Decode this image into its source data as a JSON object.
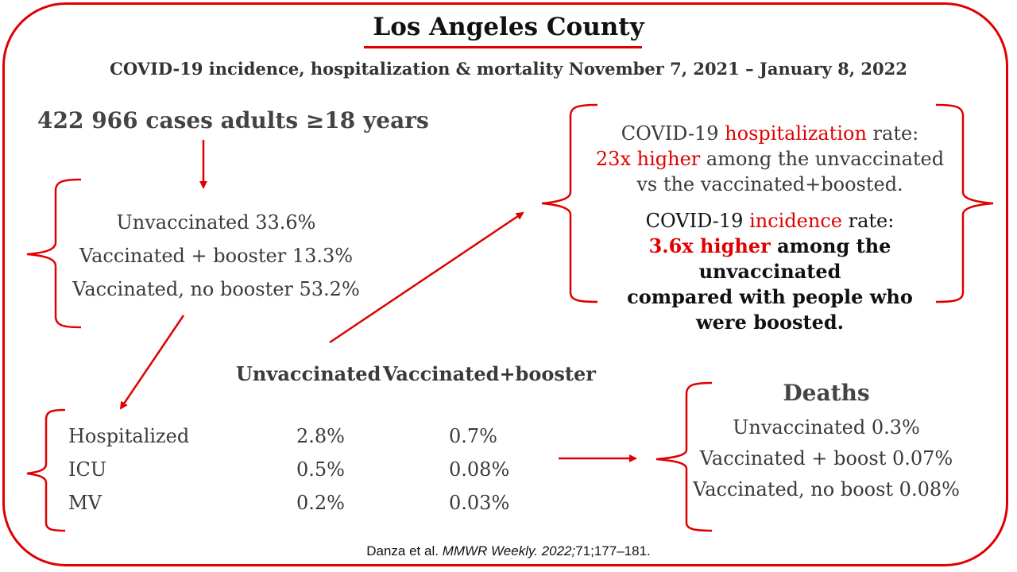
{
  "header": {
    "title": "Los Angeles County",
    "subtitle": "COVID-19 incidence, hospitalization & mortality November 7, 2021 – January 8, 2022"
  },
  "cases": {
    "text": "422 966 cases adults ≥18 years"
  },
  "vaccination_status": [
    "Unvaccinated 33.6%",
    "Vaccinated + booster 13.3%",
    "Vaccinated, no booster 53.2%"
  ],
  "table": {
    "headers": [
      "Unvaccinated",
      "Vaccinated+booster"
    ],
    "rows": [
      {
        "label": "Hospitalized",
        "unvaccinated": "2.8%",
        "boosted": "0.7%"
      },
      {
        "label": "ICU",
        "unvaccinated": "0.5%",
        "boosted": "0.08%"
      },
      {
        "label": "MV",
        "unvaccinated": "0.2%",
        "boosted": "0.03%"
      }
    ]
  },
  "rates": {
    "hosp_prefix": "COVID-19 ",
    "hosp_keyword": "hospitalization",
    "hosp_suffix": " rate:",
    "hosp_highlight": "23x higher",
    "hosp_line2": " among the unvaccinated",
    "hosp_line3": "vs the vaccinated+boosted.",
    "inc_prefix": "COVID-19 ",
    "inc_keyword": "incidence",
    "inc_suffix": " rate:",
    "inc_highlight": "3.6x higher",
    "inc_line2": " among the unvaccinated",
    "inc_line3": "compared with people who",
    "inc_line4": "were boosted."
  },
  "deaths": {
    "title": "Deaths",
    "items": [
      "Unvaccinated 0.3%",
      "Vaccinated + boost 0.07%",
      "Vaccinated, no boost 0.08%"
    ]
  },
  "citation": {
    "authors": "Danza et al. ",
    "journal": "MMWR Weekly. 2022;",
    "volume": "71;177–181."
  },
  "colors": {
    "accent": "#e00000",
    "text": "#3a3a3a"
  }
}
